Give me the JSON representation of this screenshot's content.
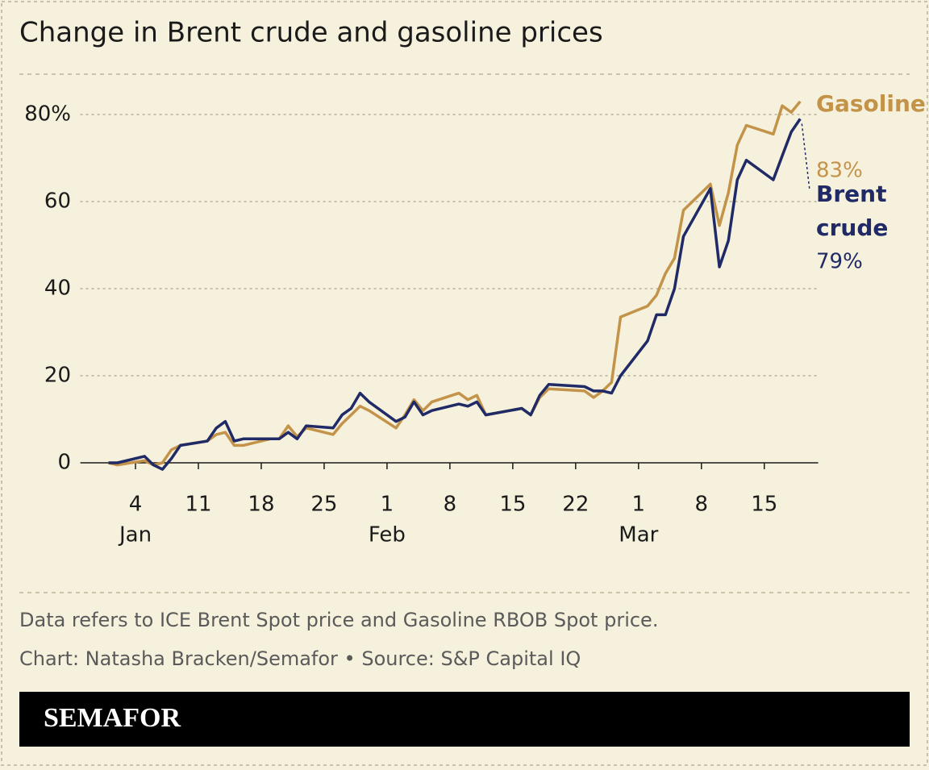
{
  "chart_data": {
    "type": "line",
    "title": "Change in Brent crude and gasoline prices",
    "x": [
      "Jan 1",
      "Jan 2",
      "Jan 5",
      "Jan 6",
      "Jan 7",
      "Jan 8",
      "Jan 9",
      "Jan 12",
      "Jan 13",
      "Jan 14",
      "Jan 15",
      "Jan 16",
      "Jan 19",
      "Jan 20",
      "Jan 21",
      "Jan 22",
      "Jan 23",
      "Jan 26",
      "Jan 27",
      "Jan 28",
      "Jan 29",
      "Jan 30",
      "Feb 2",
      "Feb 3",
      "Feb 4",
      "Feb 5",
      "Feb 6",
      "Feb 9",
      "Feb 10",
      "Feb 11",
      "Feb 12",
      "Feb 16",
      "Feb 17",
      "Feb 18",
      "Feb 19",
      "Feb 23",
      "Feb 24",
      "Feb 25",
      "Feb 26",
      "Feb 27",
      "Mar 2",
      "Mar 3",
      "Mar 4",
      "Mar 5",
      "Mar 6",
      "Mar 9",
      "Mar 10",
      "Mar 11",
      "Mar 12",
      "Mar 13",
      "Mar 16",
      "Mar 17",
      "Mar 18",
      "Mar 19"
    ],
    "series": [
      {
        "name": "Gasoline",
        "color": "#c4934a",
        "last_label": "83%",
        "values": [
          0,
          -0.5,
          0.5,
          -0.5,
          0,
          3,
          4,
          5,
          6.5,
          7,
          4,
          4,
          5.5,
          5.5,
          8.5,
          6,
          8,
          6.5,
          9,
          11,
          13,
          12,
          8,
          11,
          14.5,
          12,
          14,
          16,
          14.5,
          15.5,
          11,
          12.5,
          11,
          15,
          17,
          16.5,
          15,
          16.5,
          18.5,
          33.5,
          36,
          38.5,
          43.5,
          47,
          58,
          64,
          54.5,
          62,
          73,
          77.5,
          75.5,
          82,
          80.5,
          83
        ]
      },
      {
        "name": "Brent crude",
        "color": "#1f2a66",
        "last_label": "79%",
        "values": [
          0,
          0,
          1.5,
          -0.5,
          -1.5,
          1,
          4,
          5,
          8,
          9.5,
          5,
          5.5,
          5.5,
          5.5,
          7,
          5.5,
          8.5,
          8,
          11,
          12.5,
          16,
          14,
          9.5,
          10.5,
          14,
          11,
          12,
          13.5,
          13,
          14,
          11,
          12.5,
          11,
          15.5,
          18,
          17.5,
          16.5,
          16.5,
          16,
          20,
          28,
          34,
          34,
          40,
          52,
          63,
          45,
          51,
          65,
          69.5,
          65,
          70.5,
          76,
          79
        ]
      }
    ],
    "xlim": [
      "Jan 1",
      "Mar 21"
    ],
    "xticks": [
      {
        "value": "Jan 4",
        "label": "4"
      },
      {
        "value": "Jan 11",
        "label": "11"
      },
      {
        "value": "Jan 18",
        "label": "18"
      },
      {
        "value": "Jan 25",
        "label": "25"
      },
      {
        "value": "Feb 1",
        "label": "1"
      },
      {
        "value": "Feb 8",
        "label": "8"
      },
      {
        "value": "Feb 15",
        "label": "15"
      },
      {
        "value": "Feb 22",
        "label": "22"
      },
      {
        "value": "Mar 1",
        "label": "1"
      },
      {
        "value": "Mar 8",
        "label": "8"
      },
      {
        "value": "Mar 15",
        "label": "15"
      }
    ],
    "x_month_labels": [
      {
        "value": "Jan 4",
        "label": "Jan"
      },
      {
        "value": "Feb 1",
        "label": "Feb"
      },
      {
        "value": "Mar 1",
        "label": "Mar"
      }
    ],
    "ylim": [
      0,
      80
    ],
    "yticks": [
      0,
      20,
      40,
      60,
      {
        "value": 80,
        "label": "80%"
      }
    ],
    "grid": true,
    "note": "Data refers to ICE Brent Spot price and Gasoline RBOB Spot price.",
    "credit": "Chart: Natasha Bracken/Semafor • Source: S&P Capital IQ",
    "brand": "SEMAFOR"
  }
}
